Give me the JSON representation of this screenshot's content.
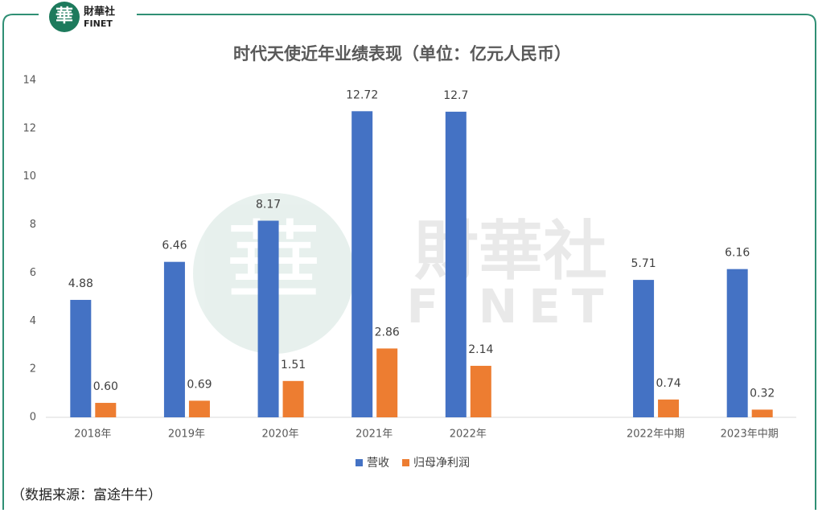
{
  "logo": {
    "mark": "華",
    "name": "財華社",
    "sub": "FINET"
  },
  "chart_data": {
    "type": "bar",
    "title": "时代天使近年业绩表现（单位：亿元人民币）",
    "categories": [
      "2018年",
      "2019年",
      "2020年",
      "2021年",
      "2022年",
      null,
      "2022年中期",
      "2023年中期"
    ],
    "series": [
      {
        "name": "营收",
        "color": "#4472c4",
        "values": [
          4.88,
          6.46,
          8.17,
          12.72,
          12.7,
          null,
          5.71,
          6.16
        ]
      },
      {
        "name": "归母净利润",
        "color": "#ed7d31",
        "values": [
          0.6,
          0.69,
          1.51,
          2.86,
          2.14,
          null,
          0.74,
          0.32
        ],
        "value_labels": [
          "0.60",
          "0.69",
          "1.51",
          "2.86",
          "2.14",
          null,
          "0.74",
          "0.32"
        ]
      }
    ],
    "ylim": [
      0,
      14
    ],
    "yticks": [
      0,
      2,
      4,
      6,
      8,
      10,
      12,
      14
    ],
    "grid": false,
    "legend": "bottom",
    "source": "（数据来源：富途牛牛）"
  }
}
